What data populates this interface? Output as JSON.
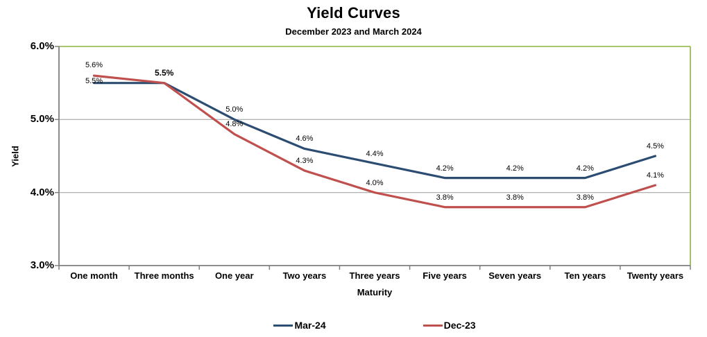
{
  "chart_data": {
    "type": "line",
    "title": "Yield Curves",
    "subtitle": "December 2023 and March 2024",
    "xlabel": "Maturity",
    "ylabel": "Yield",
    "categories": [
      "One month",
      "Three months",
      "One year",
      "Two years",
      "Three years",
      "Five years",
      "Seven years",
      "Ten years",
      "Twenty years"
    ],
    "ylim": [
      3.0,
      6.0
    ],
    "yticks": [
      3.0,
      4.0,
      5.0,
      6.0
    ],
    "ytick_labels": [
      "3.0%",
      "4.0%",
      "5.0%",
      "6.0%"
    ],
    "grid": "horizontal",
    "legend_position": "bottom",
    "series": [
      {
        "name": "Mar-24",
        "color": "#2C4D71",
        "values": [
          5.5,
          5.5,
          5.0,
          4.6,
          4.4,
          4.2,
          4.2,
          4.2,
          4.5
        ],
        "labels": [
          "5.5%",
          "5.5%",
          "5.0%",
          "4.6%",
          "4.4%",
          "4.2%",
          "4.2%",
          "4.2%",
          "4.5%"
        ],
        "bold_label_indices": [
          1
        ],
        "label_offsets": [
          -8,
          -19,
          -19,
          -19,
          -19,
          -19,
          -19,
          -19,
          -19
        ]
      },
      {
        "name": "Dec-23",
        "color": "#C0504D",
        "values": [
          5.6,
          5.5,
          4.8,
          4.3,
          4.0,
          3.8,
          3.8,
          3.8,
          4.1
        ],
        "labels": [
          "5.6%",
          "",
          "4.8%",
          "4.3%",
          "4.0%",
          "3.8%",
          "3.8%",
          "3.8%",
          "4.1%"
        ],
        "bold_label_indices": [],
        "label_offsets": [
          -20,
          -19,
          -19,
          -19,
          -19,
          -19,
          -19,
          -19,
          -19
        ]
      }
    ],
    "colors": {
      "plot_border": "#9BBB59",
      "axis": "#7F7F7F",
      "gridline": "#A6A6A6",
      "text": "#000000"
    }
  }
}
